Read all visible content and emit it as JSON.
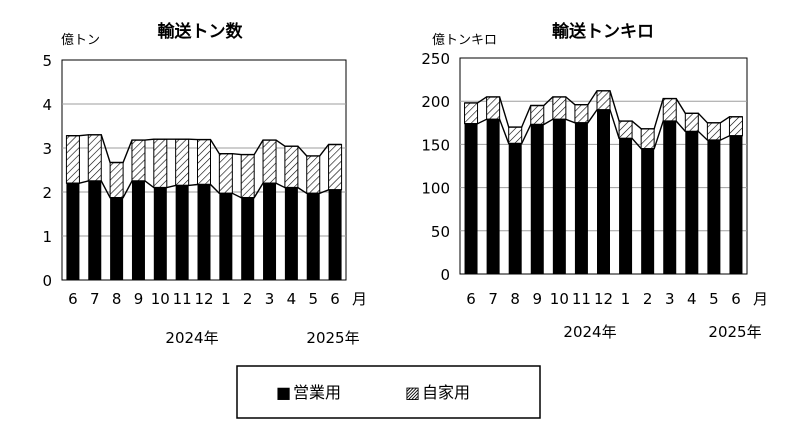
{
  "chart_data": [
    {
      "type": "bar",
      "stacked": true,
      "title": "輸送トン数",
      "ylabel": "億トン",
      "ylim": [
        0,
        5
      ],
      "yticks": [
        0,
        1,
        2,
        3,
        4,
        5
      ],
      "grid": true,
      "categories": [
        "6",
        "7",
        "8",
        "9",
        "10",
        "11",
        "12",
        "1",
        "2",
        "3",
        "4",
        "5",
        "6"
      ],
      "month_suffix": "月",
      "year_labels": [
        "2024年",
        "2025年"
      ],
      "series": [
        {
          "name": "営業用",
          "values": [
            2.2,
            2.25,
            1.87,
            2.25,
            2.1,
            2.15,
            2.17,
            1.97,
            1.87,
            2.2,
            2.1,
            1.97,
            2.05
          ]
        },
        {
          "name": "自家用",
          "values": [
            1.08,
            1.05,
            0.8,
            0.93,
            1.1,
            1.05,
            1.02,
            0.9,
            0.98,
            0.98,
            0.94,
            0.85,
            1.03
          ]
        }
      ]
    },
    {
      "type": "bar",
      "stacked": true,
      "title": "輸送トンキロ",
      "ylabel": "億トンキロ",
      "ylim": [
        0,
        250
      ],
      "yticks": [
        0,
        50,
        100,
        150,
        200,
        250
      ],
      "grid": true,
      "categories": [
        "6",
        "7",
        "8",
        "9",
        "10",
        "11",
        "12",
        "1",
        "2",
        "3",
        "4",
        "5",
        "6"
      ],
      "month_suffix": "月",
      "year_labels": [
        "2024年",
        "2025年"
      ],
      "series": [
        {
          "name": "営業用",
          "values": [
            174,
            179,
            151,
            173,
            179,
            175,
            190,
            157,
            145,
            177,
            165,
            155,
            160
          ]
        },
        {
          "name": "自家用",
          "values": [
            24,
            26,
            19,
            22,
            26,
            21,
            22,
            20,
            23,
            26,
            21,
            20,
            22
          ]
        }
      ]
    }
  ],
  "legend": {
    "items": [
      "営業用",
      "自家用"
    ],
    "solid_marker": "■",
    "hatch_marker": "▨"
  },
  "colors": {
    "commercial": "#000000",
    "private_hatch": "#000000",
    "grid": "#9e9e9e"
  }
}
